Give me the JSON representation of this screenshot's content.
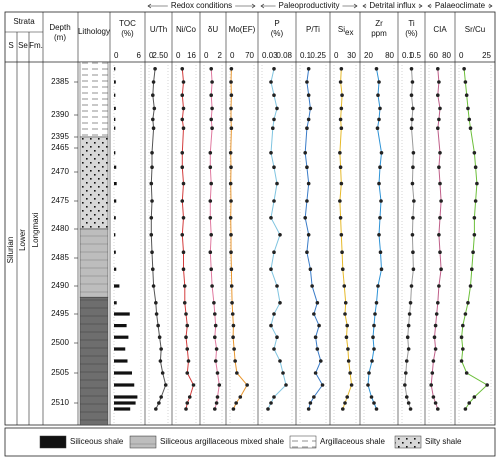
{
  "chart_data": {
    "type": "well-log",
    "strata_header": "Strata",
    "strata_columns": [
      "S",
      "Se",
      "Fm."
    ],
    "strata_units": [
      "Silurian",
      "Lower",
      "Longmaxi"
    ],
    "depth_name": [
      "Depth",
      "(m)"
    ],
    "lithology_name": "Lithology",
    "groups": [
      "Redox conditions",
      "Paleoproductivity",
      "Detrital influx",
      "Palaeoclimate"
    ],
    "yticks": [
      2385,
      2390,
      2395,
      2465,
      2470,
      2475,
      2480,
      2485,
      2490,
      2495,
      2500,
      2505,
      2510
    ],
    "depths": [
      2383,
      2385,
      2387,
      2389,
      2391,
      2393,
      2466,
      2469,
      2472,
      2475,
      2478,
      2481,
      2484,
      2487,
      2490,
      2493,
      2495,
      2497,
      2499,
      2501,
      2503,
      2505,
      2507,
      2509,
      2510,
      2511
    ],
    "lithology": [
      {
        "top": 2382,
        "bottom": 2395,
        "type": 2
      },
      {
        "top": 2395,
        "bottom": 2480,
        "type": 3
      },
      {
        "top": 2480,
        "bottom": 2492,
        "type": 1
      },
      {
        "top": 2492,
        "bottom": 2514,
        "type": 0
      }
    ],
    "legend": [
      "Siliceous shale",
      "Siliceous  argillaceous mixed shale",
      "Argillaceous shale",
      "Silty shale"
    ],
    "series": [
      {
        "name": [
          "TOC",
          "(%)"
        ],
        "type": "bar",
        "color": "#111111",
        "xlim": [
          0,
          6
        ],
        "xticks": [
          0,
          6
        ],
        "values": [
          0.3,
          0.4,
          0.3,
          0.4,
          0.3,
          0.3,
          0.3,
          0.5,
          0.6,
          0.5,
          0.4,
          0.3,
          0.4,
          0.5,
          1.2,
          0.6,
          3.5,
          2.8,
          3.2,
          2.5,
          3.0,
          4.0,
          4.5,
          5.2,
          4.8,
          3.6
        ]
      },
      {
        "name": [
          "U/Th"
        ],
        "type": "line",
        "color": "#555555",
        "xlim": [
          0,
          2.5
        ],
        "xticks": [
          0,
          {
            "value": 2.5,
            "label": "2.50"
          }
        ],
        "values": [
          0.8,
          0.6,
          0.5,
          0.7,
          0.5,
          0.6,
          0.4,
          0.4,
          0.3,
          0.4,
          0.3,
          0.3,
          0.4,
          0.5,
          0.6,
          0.9,
          1.0,
          1.2,
          1.4,
          1.6,
          1.5,
          1.8,
          2.2,
          1.6,
          1.3,
          0.9
        ]
      },
      {
        "name": [
          "Ni/Co"
        ],
        "type": "line",
        "color": "#d23c3c",
        "xlim": [
          0,
          16
        ],
        "xticks": [
          0,
          16
        ],
        "values": [
          5,
          6,
          5,
          6,
          5,
          6,
          5,
          5,
          6,
          5,
          6,
          5,
          6,
          6,
          7,
          7,
          8,
          9,
          8,
          9,
          10,
          9,
          14,
          11,
          9,
          8
        ]
      },
      {
        "name": [
          "δU"
        ],
        "type": "line",
        "color": "#e07aa0",
        "xlim": [
          0,
          2
        ],
        "xticks": [
          0,
          2
        ],
        "values": [
          0.8,
          0.9,
          0.8,
          0.9,
          0.8,
          0.9,
          0.7,
          0.7,
          0.8,
          0.7,
          0.7,
          0.8,
          0.7,
          0.8,
          0.9,
          1.1,
          1.2,
          1.3,
          1.2,
          1.4,
          1.3,
          1.5,
          1.7,
          1.5,
          1.4,
          1.2
        ]
      },
      {
        "name": [
          "Mo(EF)"
        ],
        "type": "line",
        "color": "#e8962e",
        "xlim": [
          0,
          70
        ],
        "xticks": [
          0,
          70
        ],
        "values": [
          4,
          3,
          4,
          3,
          3,
          4,
          2,
          3,
          2,
          3,
          2,
          3,
          3,
          4,
          5,
          6,
          8,
          10,
          9,
          12,
          15,
          20,
          50,
          30,
          18,
          10
        ]
      },
      {
        "name": [
          "P",
          "(%)"
        ],
        "type": "line",
        "color": "#7fc4e0",
        "xlim": [
          0.03,
          0.08
        ],
        "xticks": [
          0.03,
          0.08
        ],
        "values": [
          0.05,
          0.045,
          0.05,
          0.055,
          0.05,
          0.048,
          0.045,
          0.05,
          0.055,
          0.05,
          0.045,
          0.06,
          0.05,
          0.045,
          0.055,
          0.06,
          0.05,
          0.045,
          0.055,
          0.05,
          0.06,
          0.065,
          0.07,
          0.05,
          0.045,
          0.04
        ]
      },
      {
        "name": [
          "P/Ti"
        ],
        "type": "line",
        "color": "#3a7cc8",
        "xlim": [
          0.1,
          0.25
        ],
        "xticks": [
          0.1,
          0.25
        ],
        "values": [
          0.15,
          0.14,
          0.15,
          0.16,
          0.15,
          0.14,
          0.13,
          0.14,
          0.15,
          0.14,
          0.13,
          0.15,
          0.14,
          0.16,
          0.17,
          0.2,
          0.18,
          0.21,
          0.19,
          0.2,
          0.22,
          0.19,
          0.23,
          0.18,
          0.16,
          0.15
        ]
      },
      {
        "name": [
          "Si"
        ],
        "subscript": "ex",
        "type": "line",
        "color": "#e6b92a",
        "xlim": [
          0,
          30
        ],
        "xticks": [
          0,
          30
        ],
        "values": [
          10,
          9,
          11,
          10,
          9,
          10,
          8,
          9,
          10,
          8,
          9,
          10,
          11,
          12,
          14,
          16,
          15,
          18,
          17,
          19,
          20,
          22,
          24,
          18,
          15,
          12
        ]
      },
      {
        "name": [
          "Zr",
          "ppm"
        ],
        "type": "line",
        "color": "#2f93d6",
        "xlim": [
          20,
          80
        ],
        "xticks": [
          20,
          80
        ],
        "values": [
          45,
          50,
          48,
          52,
          50,
          47,
          55,
          52,
          50,
          54,
          52,
          50,
          53,
          55,
          48,
          45,
          42,
          40,
          38,
          40,
          36,
          30,
          28,
          35,
          40,
          45
        ]
      },
      {
        "name": [
          "Ti",
          "(%)"
        ],
        "type": "line",
        "color": "#9a9a9a",
        "xlim": [
          0.1,
          0.5
        ],
        "xticks": [
          0.1,
          0.5
        ],
        "values": [
          0.3,
          0.32,
          0.3,
          0.33,
          0.31,
          0.3,
          0.34,
          0.33,
          0.32,
          0.35,
          0.33,
          0.32,
          0.33,
          0.34,
          0.3,
          0.28,
          0.26,
          0.24,
          0.22,
          0.24,
          0.2,
          0.18,
          0.16,
          0.2,
          0.24,
          0.28
        ]
      },
      {
        "name": [
          "CIA"
        ],
        "type": "line",
        "color": "#c0608a",
        "xlim": [
          60,
          80
        ],
        "xticks": [
          60,
          80
        ],
        "values": [
          68,
          69,
          68,
          70,
          69,
          68,
          70,
          69,
          70,
          71,
          70,
          69,
          70,
          71,
          69,
          68,
          67,
          66,
          65,
          66,
          64,
          63,
          62,
          64,
          66,
          68
        ]
      },
      {
        "name": [
          "Sr/Cu"
        ],
        "type": "line",
        "color": "#6cbf3a",
        "xlim": [
          0,
          25
        ],
        "xticks": [
          0,
          25
        ],
        "values": [
          4,
          5,
          6,
          7,
          8,
          9,
          12,
          13,
          14,
          13,
          12,
          12,
          11,
          10,
          9,
          7,
          5,
          3,
          2,
          3,
          2,
          6,
          22,
          12,
          8,
          5
        ]
      }
    ]
  }
}
